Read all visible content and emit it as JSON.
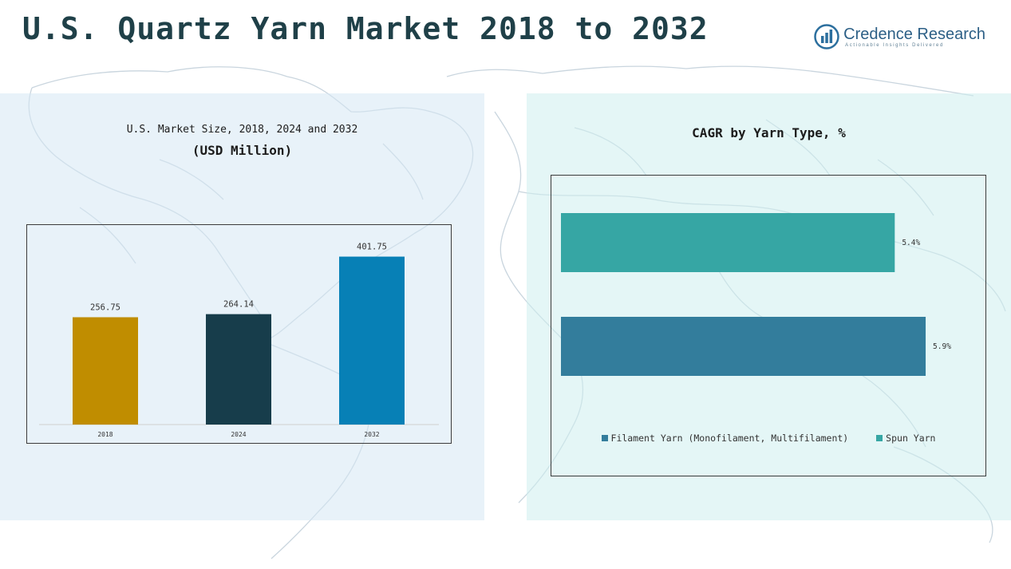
{
  "page": {
    "title": "U.S. Quartz Yarn Market 2018 to 2032"
  },
  "logo": {
    "brand": "Credence Research",
    "tagline": "Actionable Insights Delivered",
    "icon": "bar-chart-circle-icon"
  },
  "left_panel": {
    "title_line1": "U.S. Market Size, 2018, 2024 and 2032",
    "title_line2": "(USD Million)"
  },
  "right_panel": {
    "title": "CAGR by Yarn Type, %"
  },
  "chart_data": [
    {
      "type": "bar",
      "title": "U.S. Market Size, 2018, 2024 and 2032",
      "subtitle": "(USD Million)",
      "categories": [
        "2018",
        "2024",
        "2032"
      ],
      "values": [
        256.75,
        264.14,
        401.75
      ],
      "value_labels": [
        "256.75",
        "264.14",
        "401.75"
      ],
      "colors": [
        "#c08d00",
        "#173d4b",
        "#0780b6"
      ],
      "ylim": [
        0,
        420
      ],
      "grid": false,
      "legend": "none"
    },
    {
      "type": "bar",
      "orientation": "horizontal",
      "title": "CAGR by Yarn Type, %",
      "series": [
        {
          "name": "Filament Yarn (Monofilament, Multifilament)",
          "value": 5.9,
          "label": "5.9%",
          "color": "#337d9c"
        },
        {
          "name": "Spun Yarn",
          "value": 5.4,
          "label": "5.4%",
          "color": "#36a6a4"
        }
      ],
      "xlim": [
        0,
        7.5
      ],
      "grid": false,
      "legend": "bottom"
    }
  ]
}
